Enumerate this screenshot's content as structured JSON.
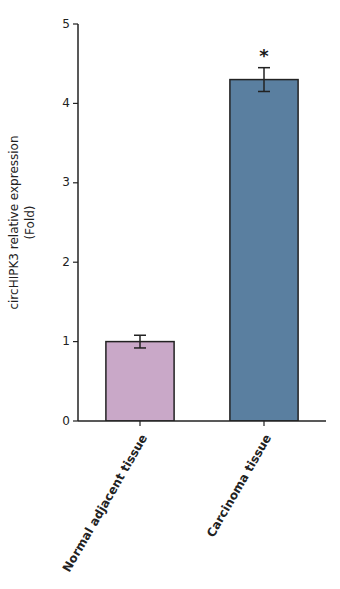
{
  "chart_data": {
    "type": "bar",
    "categories": [
      "Normal adjacent tissue",
      "Carcinoma tissue"
    ],
    "values": [
      1.0,
      4.3
    ],
    "errors": [
      0.08,
      0.15
    ],
    "colors": [
      "#c9a8c8",
      "#5a7fa0"
    ],
    "ylabel": "circHIPK3 relative expression\n(Fold)",
    "ylim": [
      0,
      5
    ],
    "yticks": [
      0,
      1,
      2,
      3,
      4,
      5
    ],
    "annotations": [
      {
        "text": "*",
        "category": "Carcinoma tissue"
      }
    ],
    "grid": false
  }
}
